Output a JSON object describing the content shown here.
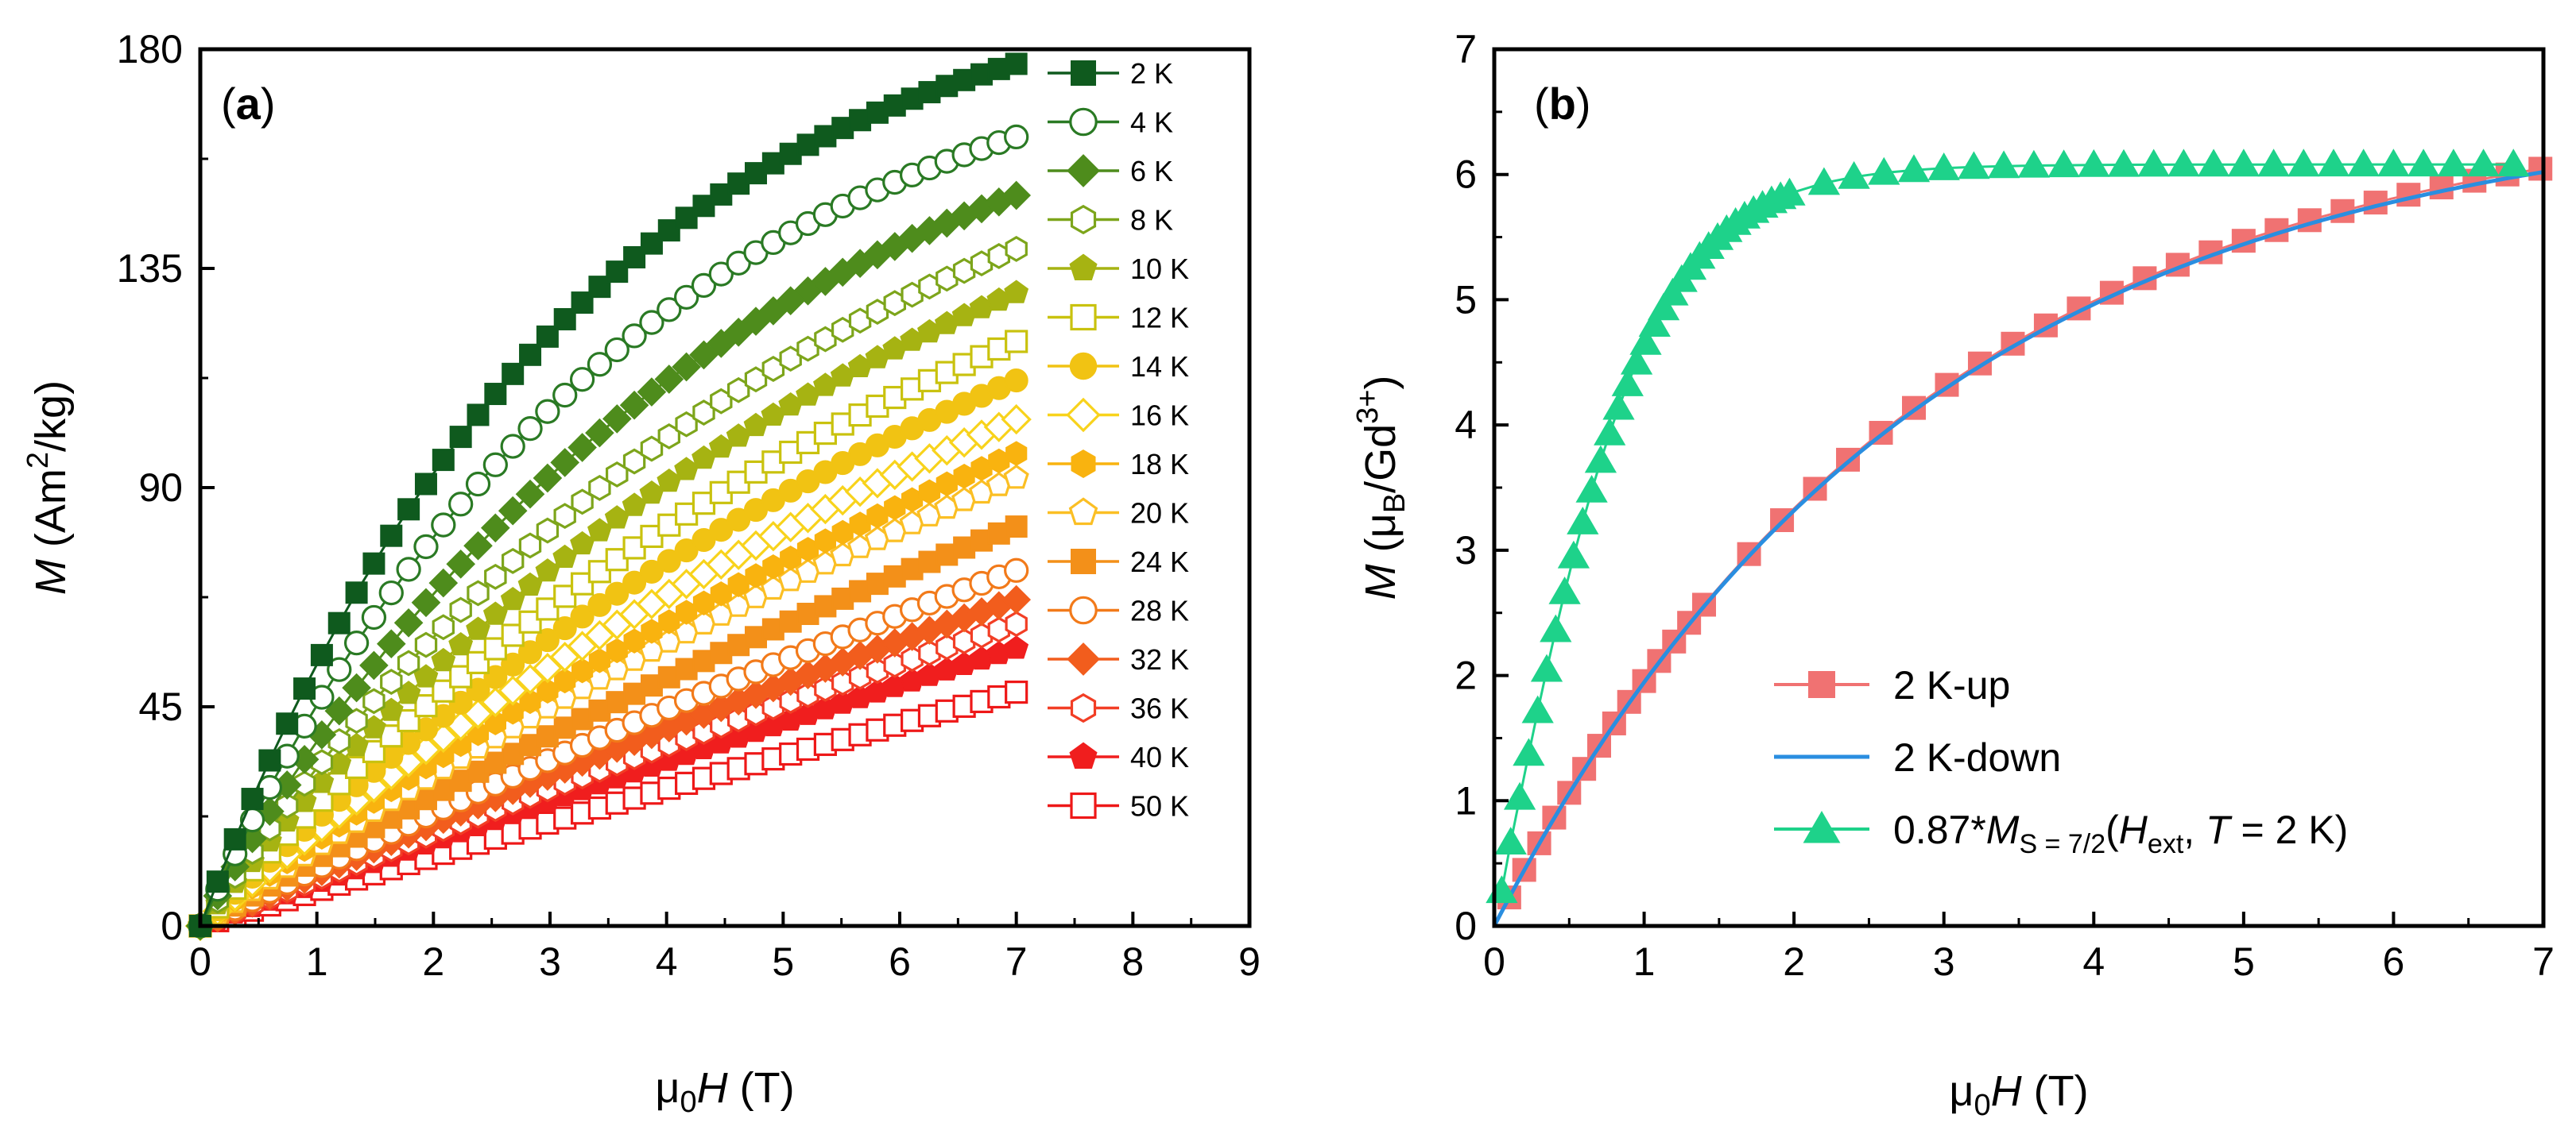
{
  "chart_data": [
    {
      "panel_label": "a",
      "type": "scatter",
      "xlabel_prefix": "μ",
      "xlabel_sub": "0",
      "xlabel_var": "H",
      "xlabel_unit": "(T)",
      "ylabel_var": "M",
      "ylabel_unit_pre": "(Am",
      "ylabel_unit_sup": "2",
      "ylabel_unit_post": "/kg)",
      "xlim": [
        0,
        9
      ],
      "ylim": [
        0,
        180
      ],
      "xticks": [
        "0",
        "1",
        "2",
        "3",
        "4",
        "5",
        "6",
        "7",
        "8",
        "9"
      ],
      "yticks": [
        "0",
        "45",
        "90",
        "135",
        "180"
      ],
      "legend_position": "right",
      "x_range": [
        0,
        7
      ],
      "series": [
        {
          "name": "2 K",
          "color": "#0f5a1e",
          "marker": "square",
          "filled": true,
          "M7": 177,
          "curve": 2.2
        },
        {
          "name": "4 K",
          "color": "#2a7a24",
          "marker": "circle",
          "filled": false,
          "M7": 162,
          "curve": 1.9
        },
        {
          "name": "6 K",
          "color": "#4e8c1c",
          "marker": "diamond",
          "filled": true,
          "M7": 150,
          "curve": 1.55
        },
        {
          "name": "8 K",
          "color": "#7da51b",
          "marker": "hexagon",
          "filled": false,
          "M7": 139,
          "curve": 1.3
        },
        {
          "name": "10 K",
          "color": "#a6b312",
          "marker": "pentagon",
          "filled": true,
          "M7": 130,
          "curve": 1.1
        },
        {
          "name": "12 K",
          "color": "#c9c20e",
          "marker": "square",
          "filled": false,
          "M7": 120,
          "curve": 0.95
        },
        {
          "name": "14 K",
          "color": "#f1c313",
          "marker": "circle",
          "filled": true,
          "M7": 112,
          "curve": 0.8
        },
        {
          "name": "16 K",
          "color": "#f8d31c",
          "marker": "diamond",
          "filled": false,
          "M7": 104,
          "curve": 0.68
        },
        {
          "name": "18 K",
          "color": "#f9b30f",
          "marker": "hexagon",
          "filled": true,
          "M7": 97,
          "curve": 0.58
        },
        {
          "name": "20 K",
          "color": "#fbbf24",
          "marker": "pentagon",
          "filled": false,
          "M7": 92,
          "curve": 0.5
        },
        {
          "name": "24 K",
          "color": "#f39019",
          "marker": "square",
          "filled": true,
          "M7": 82,
          "curve": 0.4
        },
        {
          "name": "28 K",
          "color": "#f27a1a",
          "marker": "circle",
          "filled": false,
          "M7": 73,
          "curve": 0.32
        },
        {
          "name": "32 K",
          "color": "#f25d1d",
          "marker": "diamond",
          "filled": true,
          "M7": 67,
          "curve": 0.27
        },
        {
          "name": "36 K",
          "color": "#f23e25",
          "marker": "hexagon",
          "filled": false,
          "M7": 62,
          "curve": 0.22
        },
        {
          "name": "40 K",
          "color": "#f01e1e",
          "marker": "pentagon",
          "filled": true,
          "M7": 57,
          "curve": 0.18
        },
        {
          "name": "50 K",
          "color": "#ee1818",
          "marker": "square",
          "filled": false,
          "M7": 48,
          "curve": 0.12
        }
      ]
    },
    {
      "panel_label": "b",
      "type": "scatter",
      "xlabel_prefix": "μ",
      "xlabel_sub": "0",
      "xlabel_var": "H",
      "xlabel_unit": "(T)",
      "ylabel_var": "M",
      "ylabel_unit_pre": "(μ",
      "ylabel_unit_sub": "B",
      "ylabel_unit_mid": "/Gd",
      "ylabel_unit_sup": "3+",
      "ylabel_unit_post": ")",
      "xlim": [
        0,
        7
      ],
      "ylim": [
        0,
        7
      ],
      "xticks": [
        "0",
        "1",
        "2",
        "3",
        "4",
        "5",
        "6",
        "7"
      ],
      "yticks": [
        "0",
        "1",
        "2",
        "3",
        "4",
        "5",
        "6",
        "7"
      ],
      "legend_position": "bottom-right",
      "series": [
        {
          "name": "2 K-up",
          "color": "#f07272",
          "marker": "square",
          "line": true
        },
        {
          "name": "2 K-down",
          "color": "#2a8ee0",
          "marker": "none",
          "line": true
        },
        {
          "name_parts": {
            "pre": "0.87*",
            "var": "M",
            "sub": "S = 7/2",
            "open": "(",
            "h": "H",
            "hsub": "ext",
            "comma": ", ",
            "t": "T",
            "eq": " = 2 K)"
          },
          "color": "#1ed28a",
          "marker": "triangle",
          "line": true
        }
      ]
    }
  ]
}
